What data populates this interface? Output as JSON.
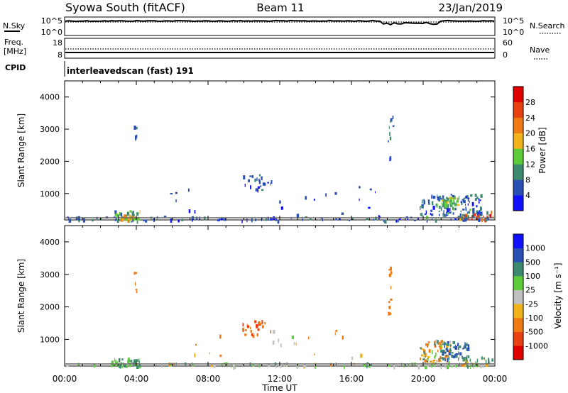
{
  "header": {
    "station": "Syowa South (fitACF)",
    "beam": "Beam 11",
    "date": "23/Jan/2019"
  },
  "top_panels": {
    "nsky_label": "N.Sky",
    "nsky_ticks": [
      "10^5",
      "10^0"
    ],
    "nsearch_label": "N.Search",
    "nsearch_ticks": [
      "10^5",
      "10^0"
    ],
    "freq_label_1": "Freq.",
    "freq_label_2": "[MHz]",
    "freq_ticks": [
      "18",
      "8"
    ],
    "nave_label": "Nave",
    "nave_ticks": [
      "60",
      "0"
    ],
    "cpid_label": "CPID",
    "cpid_text": "interleavedscan (fast) 191"
  },
  "chart_data": [
    {
      "type": "heatmap",
      "title": "",
      "xlabel": "Time UT",
      "ylabel": "Slant Range [km]",
      "xlim": [
        0,
        24
      ],
      "ylim": [
        180,
        4500
      ],
      "x_ticks": [
        "00:00",
        "04:00",
        "08:00",
        "12:00",
        "16:00",
        "20:00",
        "00:00"
      ],
      "y_ticks": [
        "1000",
        "2000",
        "3000",
        "4000"
      ],
      "colorbar": {
        "label": "Power [dB]",
        "ticks": [
          "4",
          "8",
          "12",
          "16",
          "20",
          "24",
          "28"
        ],
        "colors": [
          "#1010ff",
          "#2a50b8",
          "#3c8a6e",
          "#5ccc3a",
          "#f2b21a",
          "#f07a12",
          "#e84010",
          "#e00000"
        ],
        "range": [
          0,
          32
        ]
      },
      "clusters": [
        {
          "t0": 0.0,
          "t1": 24.0,
          "r0": 180,
          "r1": 300,
          "n": 90,
          "v0": 2,
          "v1": 10
        },
        {
          "t0": 2.6,
          "t1": 4.2,
          "r0": 200,
          "r1": 500,
          "n": 40,
          "v0": 4,
          "v1": 18
        },
        {
          "t0": 3.1,
          "t1": 3.9,
          "r0": 200,
          "r1": 350,
          "n": 25,
          "v0": 14,
          "v1": 22
        },
        {
          "t0": 3.85,
          "t1": 4.0,
          "r0": 2500,
          "r1": 3300,
          "n": 5,
          "v0": 4,
          "v1": 10
        },
        {
          "t0": 9.9,
          "t1": 11.6,
          "r0": 1100,
          "r1": 1650,
          "n": 24,
          "v0": 3,
          "v1": 10
        },
        {
          "t0": 18.0,
          "t1": 18.3,
          "r0": 1800,
          "r1": 3600,
          "n": 10,
          "v0": 3,
          "v1": 10
        },
        {
          "t0": 19.8,
          "t1": 23.2,
          "r0": 300,
          "r1": 1000,
          "n": 130,
          "v0": 2,
          "v1": 14
        },
        {
          "t0": 21.0,
          "t1": 22.0,
          "r0": 650,
          "r1": 900,
          "n": 40,
          "v0": 8,
          "v1": 18
        },
        {
          "t0": 22.0,
          "t1": 24.0,
          "r0": 200,
          "r1": 500,
          "n": 30,
          "v0": 6,
          "v1": 30
        },
        {
          "t0": 5.5,
          "t1": 17.5,
          "r0": 250,
          "r1": 1300,
          "n": 22,
          "v0": 2,
          "v1": 8
        }
      ]
    },
    {
      "type": "heatmap",
      "title": "",
      "xlabel": "Time UT",
      "ylabel": "Slant Range [km]",
      "xlim": [
        0,
        24
      ],
      "ylim": [
        180,
        4500
      ],
      "x_ticks": [
        "00:00",
        "04:00",
        "08:00",
        "12:00",
        "16:00",
        "20:00",
        "00:00"
      ],
      "y_ticks": [
        "1000",
        "2000",
        "3000",
        "4000"
      ],
      "colorbar": {
        "label": "Velocity [m s⁻¹]",
        "ticks": [
          "1000",
          "500",
          "100",
          "25",
          "-25",
          "-100",
          "-500",
          "-1000"
        ],
        "colors": [
          "#1010ff",
          "#2a50b8",
          "#3c8a6e",
          "#5ccc3a",
          "#c0c0c0",
          "#f2b21a",
          "#f07a12",
          "#e84010",
          "#e00000"
        ],
        "range": [
          -1250,
          1250
        ]
      },
      "clusters": [
        {
          "t0": 0.0,
          "t1": 24.0,
          "r0": 180,
          "r1": 300,
          "n": 90,
          "v0": -50,
          "v1": 120
        },
        {
          "t0": 2.6,
          "t1": 4.2,
          "r0": 200,
          "r1": 450,
          "n": 35,
          "v0": 40,
          "v1": 160
        },
        {
          "t0": 3.85,
          "t1": 4.0,
          "r0": 2500,
          "r1": 3300,
          "n": 5,
          "v0": -300,
          "v1": -150
        },
        {
          "t0": 9.9,
          "t1": 11.6,
          "r0": 1100,
          "r1": 1600,
          "n": 24,
          "v0": -700,
          "v1": -200
        },
        {
          "t0": 18.0,
          "t1": 18.3,
          "r0": 1800,
          "r1": 3600,
          "n": 10,
          "v0": -400,
          "v1": -120
        },
        {
          "t0": 19.8,
          "t1": 21.5,
          "r0": 300,
          "r1": 1000,
          "n": 80,
          "v0": -400,
          "v1": 200
        },
        {
          "t0": 21.0,
          "t1": 22.5,
          "r0": 400,
          "r1": 950,
          "n": 60,
          "v0": 100,
          "v1": 900
        },
        {
          "t0": 22.0,
          "t1": 24.0,
          "r0": 200,
          "r1": 500,
          "n": 30,
          "v0": -200,
          "v1": 400
        },
        {
          "t0": 5.5,
          "t1": 17.5,
          "r0": 250,
          "r1": 1300,
          "n": 22,
          "v0": -300,
          "v1": 100
        }
      ]
    }
  ]
}
